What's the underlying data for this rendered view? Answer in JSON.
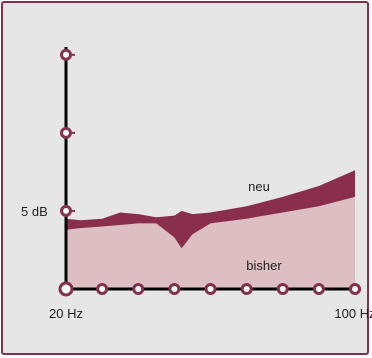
{
  "chart_data": {
    "type": "area",
    "title": "",
    "xlabel": "",
    "ylabel": "",
    "x_ticks": [
      {
        "label": "20 Hz",
        "value": 0
      },
      {
        "label": "100 Hz",
        "value": 8
      }
    ],
    "y_ticks": [
      {
        "label": "5 dB",
        "value": 5
      }
    ],
    "xlim": [
      0,
      8
    ],
    "ylim": [
      0,
      15.5
    ],
    "x_tick_count": 9,
    "y_tick_count": 4,
    "grid": false,
    "colors": {
      "background": "#e6e6e6",
      "frame": "#86314c",
      "axis": "#000000",
      "tick_marker": "#86314c",
      "neu_fill": "#8a2e4d",
      "bisher_fill": "#dcbec3"
    },
    "series": [
      {
        "name": "neu",
        "x": [
          0,
          0.4,
          1,
          1.5,
          2,
          2.5,
          3,
          3.2,
          3.5,
          4,
          5,
          6,
          7,
          8
        ],
        "lower": [
          3.8,
          3.9,
          4.0,
          4.1,
          4.2,
          4.2,
          3.3,
          2.6,
          3.5,
          4.2,
          4.5,
          4.9,
          5.3,
          5.9
        ],
        "upper": [
          4.5,
          4.4,
          4.5,
          4.9,
          4.8,
          4.6,
          4.7,
          5.0,
          4.8,
          4.9,
          5.3,
          5.9,
          6.6,
          7.6
        ]
      },
      {
        "name": "bisher",
        "x": [
          0,
          0.4,
          1,
          1.5,
          2,
          2.5,
          3,
          3.2,
          3.5,
          4,
          5,
          6,
          7,
          8
        ],
        "y": [
          3.8,
          3.9,
          4.0,
          4.1,
          4.2,
          4.2,
          3.3,
          2.6,
          3.5,
          4.2,
          4.5,
          4.9,
          5.3,
          5.9
        ]
      }
    ]
  }
}
